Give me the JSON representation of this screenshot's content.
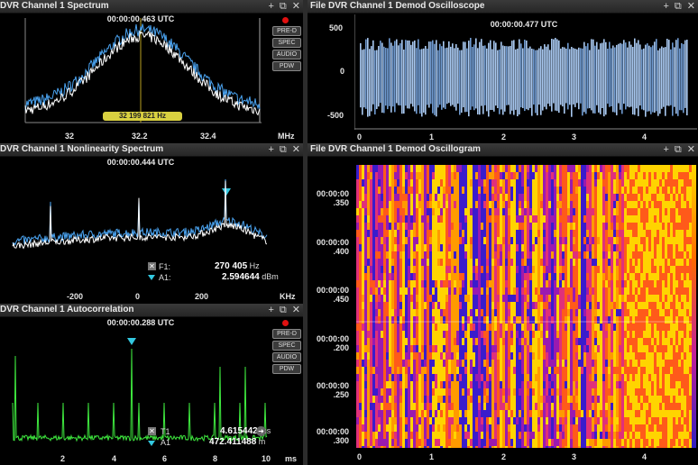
{
  "ctrl_icons": {
    "add": "plus-icon",
    "restore": "restore-window-icon",
    "close": "close-icon"
  },
  "spectrum": {
    "title": "DVR Channel 1 Spectrum",
    "timestamp": "00:00:00.463 UTC",
    "buttons": [
      "PRE-D",
      "SPEC",
      "AUDIO",
      "PDW"
    ],
    "freq_label": "32 199 821 Hz",
    "x_ticks": [
      "32",
      "32.2",
      "32.4"
    ],
    "unit": "MHz"
  },
  "nonlinearity": {
    "title": "DVR Channel 1 Nonlinearity Spectrum",
    "timestamp": "00:00:00.444 UTC",
    "x_ticks": [
      "-200",
      "0",
      "200"
    ],
    "unit": "KHz",
    "marker1_label": "F1:",
    "marker1_value": "270 405",
    "marker1_unit": "Hz",
    "marker2_label": "A1:",
    "marker2_value": "2.594644",
    "marker2_unit": "dBm"
  },
  "autocorr": {
    "title": "DVR Channel 1 Autocorrelation",
    "timestamp": "00:00:00.288 UTC",
    "buttons": [
      "PRE-D",
      "SPEC",
      "AUDIO",
      "PDW"
    ],
    "x_ticks": [
      "2",
      "4",
      "6",
      "8",
      "10"
    ],
    "unit": "ms",
    "marker1_label": "T1",
    "marker1_value": "4.615442",
    "marker1_unit": "ms",
    "marker2_label": "A1",
    "marker2_value": "472.411488",
    "marker2_unit": "m"
  },
  "oscilloscope": {
    "title": "File DVR Channel 1 Demod Oscilloscope",
    "timestamp": "00:00:00.477 UTC",
    "y_ticks": [
      "500",
      "0",
      "-500"
    ],
    "x_ticks": [
      "0",
      "1",
      "2",
      "3",
      "4"
    ]
  },
  "oscillogram": {
    "title": "File DVR Channel 1 Demod Oscillogram",
    "y_ticks": [
      {
        "t": "00:00:00",
        "s": ".350"
      },
      {
        "t": "00:00:00",
        "s": ".400"
      },
      {
        "t": "00:00:00",
        "s": ".450"
      },
      {
        "t": "00:00:00",
        "s": ".200"
      },
      {
        "t": "00:00:00",
        "s": ".250"
      },
      {
        "t": "00:00:00",
        "s": ".300"
      }
    ],
    "x_ticks": [
      "0",
      "1",
      "2",
      "3",
      "4"
    ]
  }
}
